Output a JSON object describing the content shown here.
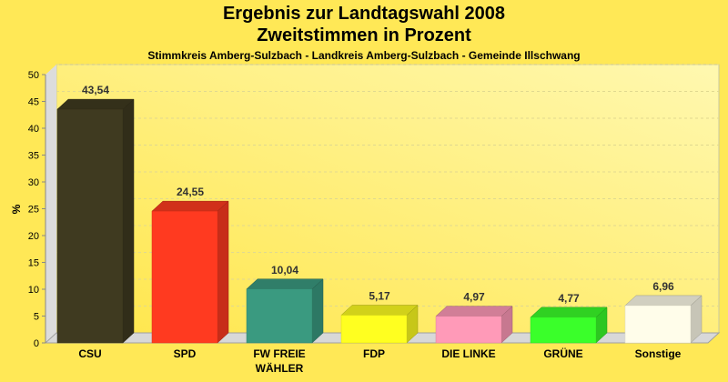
{
  "chart_data": {
    "type": "bar",
    "title": "Ergebnis zur Landtagswahl 2008",
    "subtitle": "Zweitstimmen in Prozent",
    "caption": "Stimmkreis Amberg-Sulzbach - Landkreis Amberg-Sulzbach - Gemeinde Illschwang",
    "ylabel": "%",
    "xlabel": "",
    "ylim": [
      0,
      50
    ],
    "yticks": [
      0,
      5,
      10,
      15,
      20,
      25,
      30,
      35,
      40,
      45,
      50
    ],
    "grid": true,
    "categories": [
      "CSU",
      "SPD",
      "FW FREIE WÄHLER",
      "FDP",
      "DIE LINKE",
      "GRÜNE",
      "Sonstige"
    ],
    "category_lines": [
      [
        "CSU"
      ],
      [
        "SPD"
      ],
      [
        "FW FREIE",
        "WÄHLER"
      ],
      [
        "FDP"
      ],
      [
        "DIE LINKE"
      ],
      [
        "GRÜNE"
      ],
      [
        "Sonstige"
      ]
    ],
    "values": [
      43.54,
      24.55,
      10.04,
      5.17,
      4.97,
      4.77,
      6.96
    ],
    "value_labels": [
      "43,54",
      "24,55",
      "10,04",
      "5,17",
      "4,97",
      "4,77",
      "6,96"
    ],
    "colors": [
      "#3f3a20",
      "#ff3a20",
      "#3a9a80",
      "#ffff20",
      "#ff9ab8",
      "#3aff2a",
      "#fffdea"
    ]
  }
}
